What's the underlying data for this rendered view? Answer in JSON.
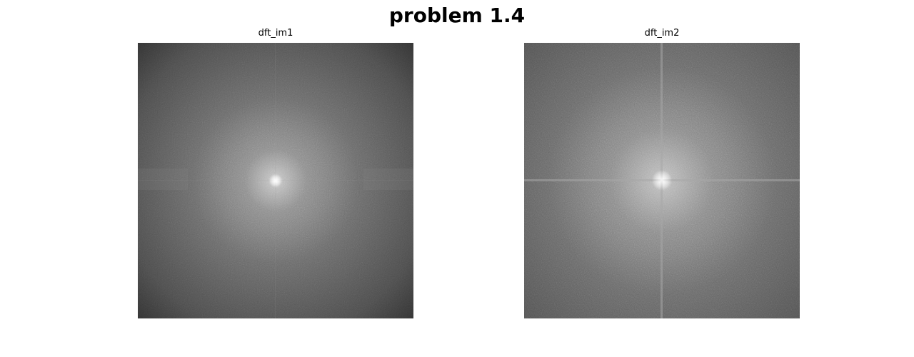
{
  "figure": {
    "title": "problem 1.4"
  },
  "panels": [
    {
      "title": "dft_im1",
      "image": "log-magnitude Fourier spectrum (grayscale), bright center, dark corners, faint horizontal and vertical axis streaks"
    },
    {
      "title": "dft_im2",
      "image": "log-magnitude Fourier spectrum (grayscale), bright center, strong horizontal and vertical cross lines, speckled noise"
    }
  ],
  "colors": {
    "background": "#ffffff",
    "text": "#000000"
  }
}
